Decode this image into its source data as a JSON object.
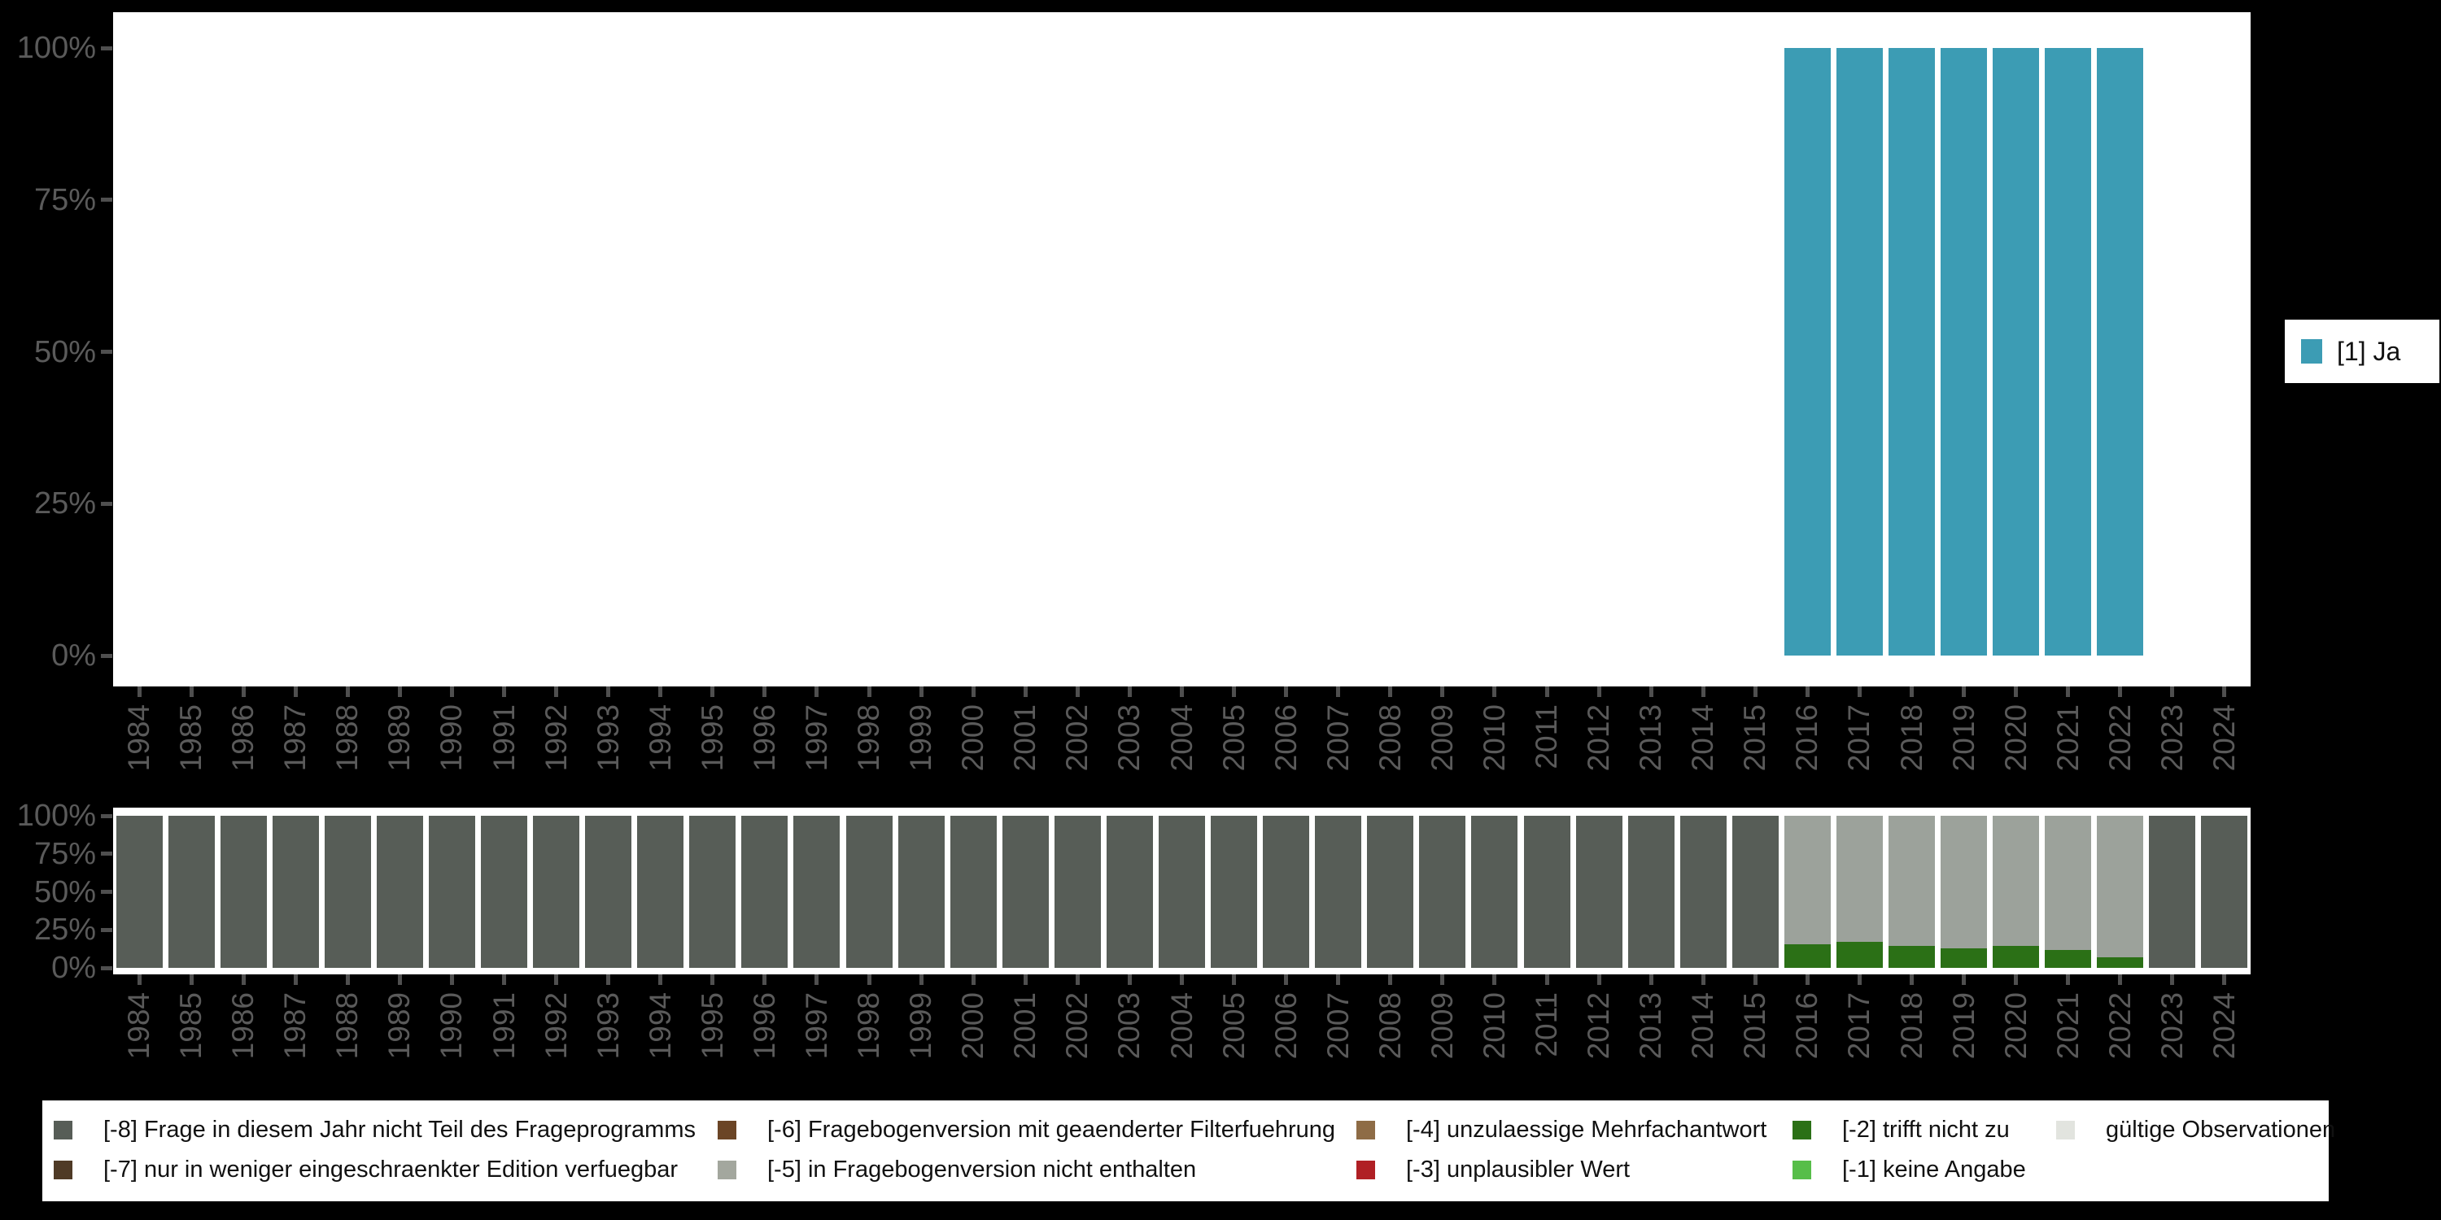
{
  "years": [
    1984,
    1985,
    1986,
    1987,
    1988,
    1989,
    1990,
    1991,
    1992,
    1993,
    1994,
    1995,
    1996,
    1997,
    1998,
    1999,
    2000,
    2001,
    2002,
    2003,
    2004,
    2005,
    2006,
    2007,
    2008,
    2009,
    2010,
    2011,
    2012,
    2013,
    2014,
    2015,
    2016,
    2017,
    2018,
    2019,
    2020,
    2021,
    2022,
    2023,
    2024
  ],
  "y_tick_labels": [
    "100%",
    "75%",
    "50%",
    "25%",
    "0%"
  ],
  "top_legend": {
    "label": "[1] Ja",
    "color": "#3C9CB4"
  },
  "colors": {
    "background": "#000000",
    "panel": "#ffffff",
    "axis_text": "#5a5a5a",
    "tick": "#4f4f4f",
    "teal": "#3C9CB4",
    "dark_gray": "#575D57",
    "light_gray": "#9CA29B",
    "dark_green": "#2B7016"
  },
  "chart_data": [
    {
      "type": "bar",
      "stacked": true,
      "title": "",
      "xlabel": "",
      "ylabel": "",
      "ylim": [
        0,
        100
      ],
      "y_tick_labels": [
        "100%",
        "75%",
        "50%",
        "25%",
        "0%"
      ],
      "categories": [
        1984,
        1985,
        1986,
        1987,
        1988,
        1989,
        1990,
        1991,
        1992,
        1993,
        1994,
        1995,
        1996,
        1997,
        1998,
        1999,
        2000,
        2001,
        2002,
        2003,
        2004,
        2005,
        2006,
        2007,
        2008,
        2009,
        2010,
        2011,
        2012,
        2013,
        2014,
        2015,
        2016,
        2017,
        2018,
        2019,
        2020,
        2021,
        2022,
        2023,
        2024
      ],
      "legend_position": "right",
      "grid": false,
      "series": [
        {
          "name": "[1] Ja",
          "color": "#3C9CB4",
          "values": [
            null,
            null,
            null,
            null,
            null,
            null,
            null,
            null,
            null,
            null,
            null,
            null,
            null,
            null,
            null,
            null,
            null,
            null,
            null,
            null,
            null,
            null,
            null,
            null,
            null,
            null,
            null,
            null,
            null,
            null,
            null,
            null,
            100,
            100,
            100,
            100,
            100,
            100,
            100,
            null,
            null
          ]
        }
      ]
    },
    {
      "type": "bar",
      "stacked": true,
      "title": "",
      "xlabel": "",
      "ylabel": "",
      "ylim": [
        0,
        100
      ],
      "y_tick_labels": [
        "100%",
        "75%",
        "50%",
        "25%",
        "0%"
      ],
      "categories": [
        1984,
        1985,
        1986,
        1987,
        1988,
        1989,
        1990,
        1991,
        1992,
        1993,
        1994,
        1995,
        1996,
        1997,
        1998,
        1999,
        2000,
        2001,
        2002,
        2003,
        2004,
        2005,
        2006,
        2007,
        2008,
        2009,
        2010,
        2011,
        2012,
        2013,
        2014,
        2015,
        2016,
        2017,
        2018,
        2019,
        2020,
        2021,
        2022,
        2023,
        2024
      ],
      "legend_position": "bottom",
      "grid": false,
      "series": [
        {
          "name": "[-8] Frage in diesem Jahr nicht Teil des Frageprogramms",
          "color": "#575D57",
          "values": [
            100,
            100,
            100,
            100,
            100,
            100,
            100,
            100,
            100,
            100,
            100,
            100,
            100,
            100,
            100,
            100,
            100,
            100,
            100,
            100,
            100,
            100,
            100,
            100,
            100,
            100,
            100,
            100,
            100,
            100,
            100,
            100,
            null,
            null,
            null,
            null,
            null,
            null,
            null,
            100,
            100
          ]
        },
        {
          "name": "[-5] in Fragebogenversion nicht enthalten",
          "color": "#9CA29B",
          "values": [
            null,
            null,
            null,
            null,
            null,
            null,
            null,
            null,
            null,
            null,
            null,
            null,
            null,
            null,
            null,
            null,
            null,
            null,
            null,
            null,
            null,
            null,
            null,
            null,
            null,
            null,
            null,
            null,
            null,
            null,
            null,
            null,
            84.5,
            83,
            85.5,
            87,
            85.5,
            88,
            93,
            null,
            null
          ]
        },
        {
          "name": "[-2] trifft nicht zu",
          "color": "#2B7016",
          "values": [
            null,
            null,
            null,
            null,
            null,
            null,
            null,
            null,
            null,
            null,
            null,
            null,
            null,
            null,
            null,
            null,
            null,
            null,
            null,
            null,
            null,
            null,
            null,
            null,
            null,
            null,
            null,
            null,
            null,
            null,
            null,
            null,
            15.5,
            17,
            14.5,
            13,
            14.5,
            12,
            7,
            null,
            null
          ]
        }
      ]
    }
  ],
  "missing_legend": {
    "rows": [
      [
        {
          "label": "[-8] Frage in diesem Jahr nicht Teil des Frageprogramms",
          "color": "#575D57"
        },
        {
          "label": "[-6] Fragebogenversion mit geaenderter Filterfuehrung",
          "color": "#6B4526"
        },
        {
          "label": "[-4] unzulaessige Mehrfachantwort",
          "color": "#8E6C46"
        },
        {
          "label": "[-2] trifft nicht zu",
          "color": "#2B7016"
        },
        {
          "label": "gültige Observationen",
          "color": "#E2E4DF"
        }
      ],
      [
        {
          "label": "[-7] nur in weniger eingeschraenkter Edition verfuegbar",
          "color": "#4F3A26"
        },
        {
          "label": "[-5] in Fragebogenversion nicht enthalten",
          "color": "#A3A79E"
        },
        {
          "label": "[-3] unplausibler Wert",
          "color": "#B02025"
        },
        {
          "label": "[-1] keine Angabe",
          "color": "#57BE49"
        }
      ]
    ]
  }
}
